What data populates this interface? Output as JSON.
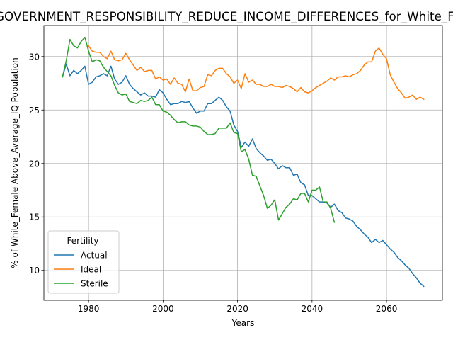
{
  "chart_data": {
    "type": "line",
    "title": "GOVERNMENT_RESPONSIBILITY_REDUCE_INCOME_DIFFERENCES_for_White_Female",
    "xlabel": "Years",
    "ylabel": "% of White_Female Above_Average_IQ Population",
    "xlim": [
      1968,
      2075
    ],
    "ylim": [
      7.2,
      32.9
    ],
    "xticks": [
      1980,
      2000,
      2020,
      2040,
      2060
    ],
    "yticks": [
      10,
      15,
      20,
      25,
      30
    ],
    "grid": true,
    "legend": {
      "title": "Fertility",
      "placement": "lower-left"
    },
    "series": [
      {
        "name": "Actual",
        "color": "#1f77b4",
        "points": [
          [
            1973,
            28.1
          ],
          [
            1974,
            29.3
          ],
          [
            1975,
            28.2
          ],
          [
            1976,
            28.7
          ],
          [
            1977,
            28.4
          ],
          [
            1978,
            28.7
          ],
          [
            1979,
            29.1
          ],
          [
            1980,
            27.4
          ],
          [
            1981,
            27.6
          ],
          [
            1982,
            28.1
          ],
          [
            1983,
            28.2
          ],
          [
            1984,
            28.4
          ],
          [
            1985,
            28.2
          ],
          [
            1986,
            29.1
          ],
          [
            1987,
            27.9
          ],
          [
            1988,
            27.4
          ],
          [
            1989,
            27.6
          ],
          [
            1990,
            28.2
          ],
          [
            1991,
            27.4
          ],
          [
            1992,
            27.0
          ],
          [
            1993,
            26.7
          ],
          [
            1994,
            26.4
          ],
          [
            1995,
            26.6
          ],
          [
            1996,
            26.3
          ],
          [
            1997,
            26.3
          ],
          [
            1998,
            26.2
          ],
          [
            1999,
            26.9
          ],
          [
            2000,
            26.6
          ],
          [
            2001,
            26.0
          ],
          [
            2002,
            25.5
          ],
          [
            2003,
            25.6
          ],
          [
            2004,
            25.6
          ],
          [
            2005,
            25.8
          ],
          [
            2006,
            25.7
          ],
          [
            2007,
            25.8
          ],
          [
            2008,
            25.2
          ],
          [
            2009,
            24.7
          ],
          [
            2010,
            24.9
          ],
          [
            2011,
            24.9
          ],
          [
            2012,
            25.6
          ],
          [
            2013,
            25.6
          ],
          [
            2014,
            25.9
          ],
          [
            2015,
            26.2
          ],
          [
            2016,
            25.9
          ],
          [
            2017,
            25.3
          ],
          [
            2018,
            24.9
          ],
          [
            2019,
            23.6
          ],
          [
            2020,
            23.0
          ],
          [
            2021,
            21.5
          ],
          [
            2022,
            22.0
          ],
          [
            2023,
            21.6
          ],
          [
            2024,
            22.3
          ],
          [
            2025,
            21.4
          ],
          [
            2026,
            21.0
          ],
          [
            2027,
            20.7
          ],
          [
            2028,
            20.3
          ],
          [
            2029,
            20.4
          ],
          [
            2030,
            20.0
          ],
          [
            2031,
            19.5
          ],
          [
            2032,
            19.8
          ],
          [
            2033,
            19.6
          ],
          [
            2034,
            19.6
          ],
          [
            2035,
            18.9
          ],
          [
            2036,
            19.0
          ],
          [
            2037,
            18.2
          ],
          [
            2038,
            18.0
          ],
          [
            2039,
            17.0
          ],
          [
            2040,
            17.0
          ],
          [
            2041,
            16.7
          ],
          [
            2042,
            16.4
          ],
          [
            2043,
            16.4
          ],
          [
            2044,
            16.3
          ],
          [
            2045,
            15.9
          ],
          [
            2046,
            16.2
          ],
          [
            2047,
            15.6
          ],
          [
            2048,
            15.4
          ],
          [
            2049,
            14.9
          ],
          [
            2050,
            14.8
          ],
          [
            2051,
            14.6
          ],
          [
            2052,
            14.1
          ],
          [
            2053,
            13.8
          ],
          [
            2054,
            13.4
          ],
          [
            2055,
            13.1
          ],
          [
            2056,
            12.6
          ],
          [
            2057,
            12.9
          ],
          [
            2058,
            12.6
          ],
          [
            2059,
            12.8
          ],
          [
            2060,
            12.4
          ],
          [
            2061,
            12.0
          ],
          [
            2062,
            11.7
          ],
          [
            2063,
            11.2
          ],
          [
            2064,
            10.9
          ],
          [
            2065,
            10.5
          ],
          [
            2066,
            10.2
          ],
          [
            2067,
            9.7
          ],
          [
            2068,
            9.3
          ],
          [
            2069,
            8.8
          ],
          [
            2070,
            8.5
          ]
        ]
      },
      {
        "name": "Ideal",
        "color": "#ff7f0e",
        "points": [
          [
            1980,
            31.0
          ],
          [
            1981,
            30.5
          ],
          [
            1982,
            30.4
          ],
          [
            1983,
            30.4
          ],
          [
            1984,
            30.0
          ],
          [
            1985,
            29.8
          ],
          [
            1986,
            30.5
          ],
          [
            1987,
            29.7
          ],
          [
            1988,
            29.6
          ],
          [
            1989,
            29.7
          ],
          [
            1990,
            30.3
          ],
          [
            1991,
            29.7
          ],
          [
            1992,
            29.2
          ],
          [
            1993,
            28.7
          ],
          [
            1994,
            29.0
          ],
          [
            1995,
            28.6
          ],
          [
            1996,
            28.7
          ],
          [
            1997,
            28.7
          ],
          [
            1998,
            27.9
          ],
          [
            1999,
            28.1
          ],
          [
            2000,
            27.8
          ],
          [
            2001,
            27.9
          ],
          [
            2002,
            27.4
          ],
          [
            2003,
            28.0
          ],
          [
            2004,
            27.5
          ],
          [
            2005,
            27.4
          ],
          [
            2006,
            26.7
          ],
          [
            2007,
            27.9
          ],
          [
            2008,
            26.8
          ],
          [
            2009,
            26.8
          ],
          [
            2010,
            27.1
          ],
          [
            2011,
            27.2
          ],
          [
            2012,
            28.3
          ],
          [
            2013,
            28.2
          ],
          [
            2014,
            28.7
          ],
          [
            2015,
            28.9
          ],
          [
            2016,
            28.9
          ],
          [
            2017,
            28.4
          ],
          [
            2018,
            28.1
          ],
          [
            2019,
            27.5
          ],
          [
            2020,
            27.8
          ],
          [
            2021,
            27.0
          ],
          [
            2022,
            28.4
          ],
          [
            2023,
            27.6
          ],
          [
            2024,
            27.8
          ],
          [
            2025,
            27.4
          ],
          [
            2026,
            27.4
          ],
          [
            2027,
            27.2
          ],
          [
            2028,
            27.2
          ],
          [
            2029,
            27.4
          ],
          [
            2030,
            27.2
          ],
          [
            2031,
            27.2
          ],
          [
            2032,
            27.1
          ],
          [
            2033,
            27.3
          ],
          [
            2034,
            27.2
          ],
          [
            2035,
            27.0
          ],
          [
            2036,
            26.7
          ],
          [
            2037,
            27.1
          ],
          [
            2038,
            26.7
          ],
          [
            2039,
            26.6
          ],
          [
            2040,
            26.8
          ],
          [
            2041,
            27.1
          ],
          [
            2042,
            27.3
          ],
          [
            2043,
            27.5
          ],
          [
            2044,
            27.7
          ],
          [
            2045,
            28.0
          ],
          [
            2046,
            27.8
          ],
          [
            2047,
            28.1
          ],
          [
            2048,
            28.1
          ],
          [
            2049,
            28.2
          ],
          [
            2050,
            28.1
          ],
          [
            2051,
            28.3
          ],
          [
            2052,
            28.4
          ],
          [
            2053,
            28.7
          ],
          [
            2054,
            29.2
          ],
          [
            2055,
            29.5
          ],
          [
            2056,
            29.5
          ],
          [
            2057,
            30.5
          ],
          [
            2058,
            30.8
          ],
          [
            2059,
            30.2
          ],
          [
            2060,
            29.8
          ],
          [
            2061,
            28.3
          ],
          [
            2062,
            27.6
          ],
          [
            2063,
            27.0
          ],
          [
            2064,
            26.6
          ],
          [
            2065,
            26.1
          ],
          [
            2066,
            26.2
          ],
          [
            2067,
            26.4
          ],
          [
            2068,
            26.0
          ],
          [
            2069,
            26.2
          ],
          [
            2070,
            26.0
          ]
        ]
      },
      {
        "name": "Sterile",
        "color": "#2ca02c",
        "points": [
          [
            1973,
            28.1
          ],
          [
            1974,
            29.6
          ],
          [
            1975,
            31.6
          ],
          [
            1976,
            31.0
          ],
          [
            1977,
            30.8
          ],
          [
            1978,
            31.4
          ],
          [
            1979,
            31.8
          ],
          [
            1980,
            30.5
          ],
          [
            1981,
            29.5
          ],
          [
            1982,
            29.7
          ],
          [
            1983,
            29.6
          ],
          [
            1984,
            29.0
          ],
          [
            1985,
            28.6
          ],
          [
            1986,
            28.2
          ],
          [
            1987,
            27.3
          ],
          [
            1988,
            26.6
          ],
          [
            1989,
            26.4
          ],
          [
            1990,
            26.5
          ],
          [
            1991,
            25.8
          ],
          [
            1992,
            25.7
          ],
          [
            1993,
            25.6
          ],
          [
            1994,
            25.9
          ],
          [
            1995,
            25.8
          ],
          [
            1996,
            25.9
          ],
          [
            1997,
            26.2
          ],
          [
            1998,
            25.5
          ],
          [
            1999,
            25.5
          ],
          [
            2000,
            24.9
          ],
          [
            2001,
            24.8
          ],
          [
            2002,
            24.5
          ],
          [
            2003,
            24.1
          ],
          [
            2004,
            23.8
          ],
          [
            2005,
            23.9
          ],
          [
            2006,
            23.9
          ],
          [
            2007,
            23.6
          ],
          [
            2008,
            23.5
          ],
          [
            2009,
            23.5
          ],
          [
            2010,
            23.4
          ],
          [
            2011,
            23.0
          ],
          [
            2012,
            22.7
          ],
          [
            2013,
            22.7
          ],
          [
            2014,
            22.8
          ],
          [
            2015,
            23.3
          ],
          [
            2016,
            23.3
          ],
          [
            2017,
            23.3
          ],
          [
            2018,
            23.8
          ],
          [
            2019,
            22.9
          ],
          [
            2020,
            22.8
          ],
          [
            2021,
            21.1
          ],
          [
            2022,
            21.3
          ],
          [
            2023,
            20.4
          ],
          [
            2024,
            18.9
          ],
          [
            2025,
            18.8
          ],
          [
            2026,
            17.9
          ],
          [
            2027,
            17.0
          ],
          [
            2028,
            15.8
          ],
          [
            2029,
            16.1
          ],
          [
            2030,
            16.6
          ],
          [
            2031,
            14.7
          ],
          [
            2032,
            15.3
          ],
          [
            2033,
            15.9
          ],
          [
            2034,
            16.2
          ],
          [
            2035,
            16.7
          ],
          [
            2036,
            16.6
          ],
          [
            2037,
            17.2
          ],
          [
            2038,
            17.2
          ],
          [
            2039,
            16.4
          ],
          [
            2040,
            17.5
          ],
          [
            2041,
            17.5
          ],
          [
            2042,
            17.8
          ],
          [
            2043,
            16.4
          ],
          [
            2044,
            16.4
          ],
          [
            2045,
            15.8
          ],
          [
            2046,
            14.5
          ]
        ]
      }
    ]
  }
}
